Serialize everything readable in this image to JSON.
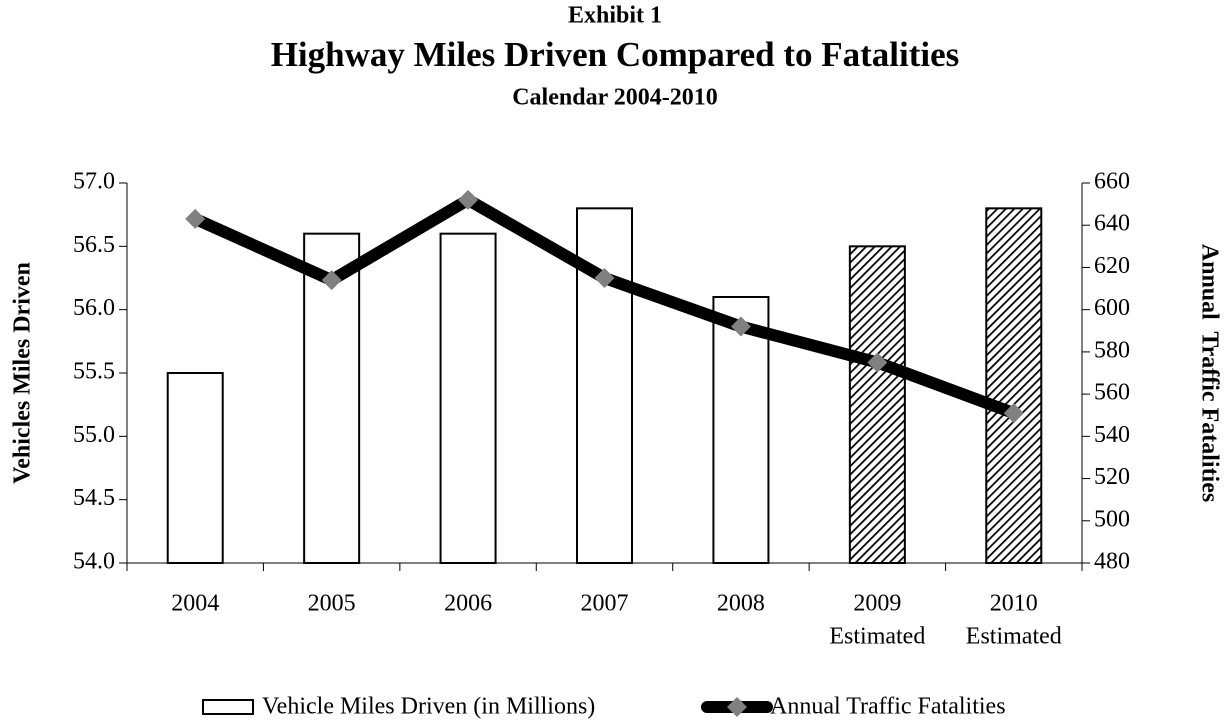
{
  "chart_data": {
    "type": "combo",
    "supertitle": "Exhibit 1",
    "title": "Highway Miles Driven Compared to Fatalities",
    "subtitle": "Calendar 2004-2010",
    "categories": [
      "2004",
      "2005",
      "2006",
      "2007",
      "2008",
      "2009",
      "2010"
    ],
    "category_notes": [
      null,
      null,
      null,
      null,
      null,
      "Estimated",
      "Estimated"
    ],
    "series": [
      {
        "name": "Vehicle Miles Driven (in Millions)",
        "type": "bar",
        "color": "#ffffff",
        "edge_color": "#000000",
        "values": [
          55.5,
          56.6,
          56.6,
          56.8,
          56.1,
          56.5,
          56.8
        ],
        "patterns": [
          null,
          null,
          null,
          null,
          null,
          "hatch",
          "hatch"
        ]
      },
      {
        "name": "Annual Traffic Fatalities",
        "type": "line",
        "axis": "y2",
        "color": "#000000",
        "marker_color": "#808080",
        "values": [
          643,
          614,
          652,
          615,
          592,
          575,
          551
        ]
      }
    ],
    "ylabel": "Vehicles Miles Driven",
    "y2label": "Annual  Traffic Fatalities",
    "ylim": [
      54,
      57
    ],
    "yticks": [
      {
        "value": 54,
        "label": "54.0"
      },
      {
        "value": 54.5,
        "label": "54.5"
      },
      {
        "value": 55,
        "label": "55.0"
      },
      {
        "value": 55.5,
        "label": "55.5"
      },
      {
        "value": 56,
        "label": "56.0"
      },
      {
        "value": 56.5,
        "label": "56.5"
      },
      {
        "value": 57,
        "label": "57.0"
      }
    ],
    "y2lim": [
      480,
      660
    ],
    "y2ticks": [
      480,
      500,
      520,
      540,
      560,
      580,
      600,
      620,
      640,
      660
    ]
  }
}
